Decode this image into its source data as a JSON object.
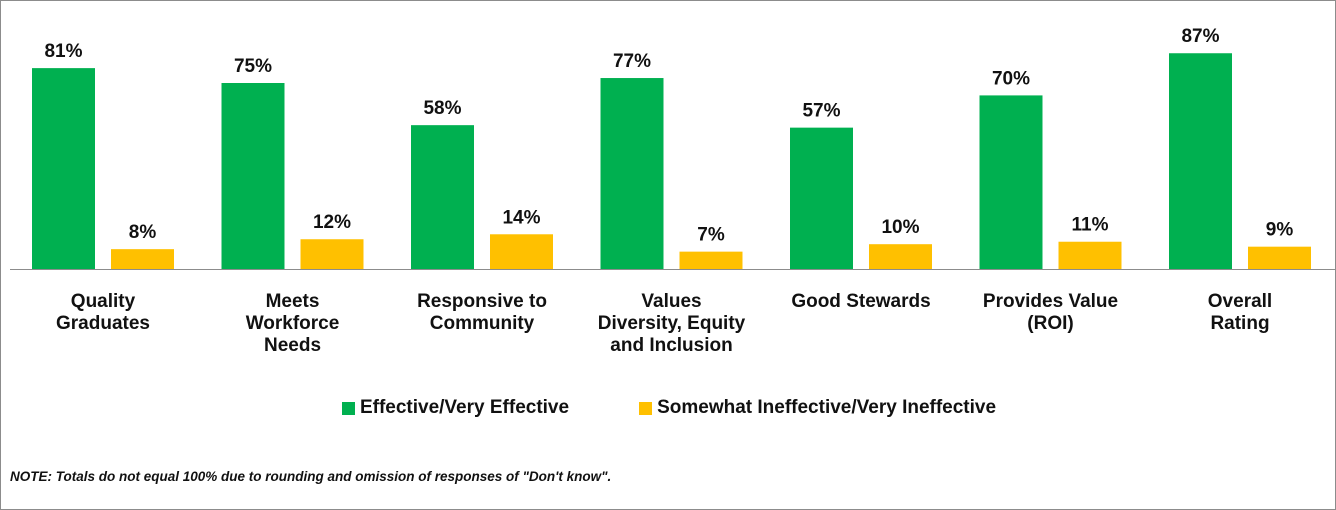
{
  "chart_data": {
    "type": "bar",
    "categories": [
      [
        "Quality",
        "Graduates"
      ],
      [
        "Meets",
        "Workforce",
        "Needs"
      ],
      [
        "Responsive to",
        "Community"
      ],
      [
        "Values",
        "Diversity, Equity",
        "and Inclusion"
      ],
      [
        "Good Stewards"
      ],
      [
        "Provides Value",
        "(ROI)"
      ],
      [
        "Overall",
        "Rating"
      ]
    ],
    "series": [
      {
        "name": "Effective/Very Effective",
        "color": "#00b050",
        "values": [
          81,
          75,
          58,
          77,
          57,
          70,
          87
        ],
        "labels": [
          "81%",
          "75%",
          "58%",
          "77%",
          "57%",
          "70%",
          "87%"
        ]
      },
      {
        "name": "Somewhat Ineffective/Very Ineffective",
        "color": "#ffc000",
        "values": [
          8,
          12,
          14,
          7,
          10,
          11,
          9
        ],
        "labels": [
          "8%",
          "12%",
          "14%",
          "7%",
          "10%",
          "11%",
          "9%"
        ]
      }
    ],
    "ylim": [
      0,
      100
    ],
    "legend_position": "bottom",
    "grid": false
  },
  "note": "NOTE: Totals do not equal 100% due to rounding and omission of responses of \"Don't know\"."
}
